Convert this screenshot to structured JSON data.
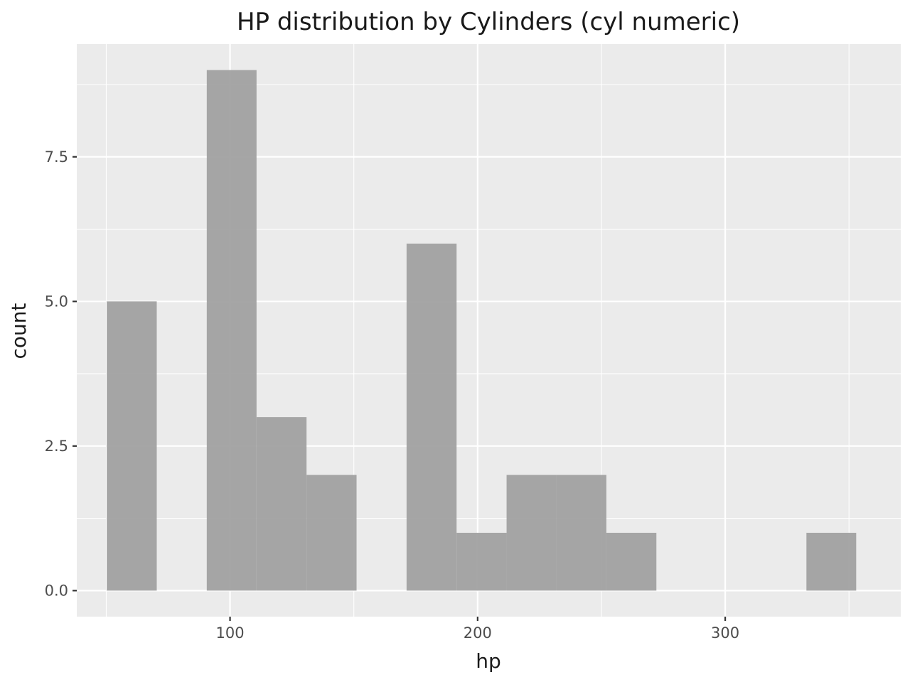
{
  "chart_data": {
    "type": "bar",
    "title": "HP distribution by Cylinders (cyl numeric)",
    "xlabel": "hp",
    "ylabel": "count",
    "xlim": [
      38.1,
      370.9
    ],
    "ylim": [
      -0.45,
      9.45
    ],
    "x_ticks": [
      100,
      200,
      300
    ],
    "x_tick_labels": [
      "100",
      "200",
      "300"
    ],
    "y_ticks": [
      0,
      2.5,
      5,
      7.5
    ],
    "y_tick_labels": [
      "0.0",
      "2.5",
      "5.0",
      "7.5"
    ],
    "bins": [
      {
        "x0": 50.2,
        "x1": 70.4,
        "count": 5
      },
      {
        "x0": 70.4,
        "x1": 90.6,
        "count": 0
      },
      {
        "x0": 90.6,
        "x1": 110.7,
        "count": 9
      },
      {
        "x0": 110.7,
        "x1": 130.9,
        "count": 3
      },
      {
        "x0": 130.9,
        "x1": 151.1,
        "count": 2
      },
      {
        "x0": 151.1,
        "x1": 171.3,
        "count": 0
      },
      {
        "x0": 171.3,
        "x1": 191.5,
        "count": 6
      },
      {
        "x0": 191.5,
        "x1": 211.7,
        "count": 1
      },
      {
        "x0": 211.7,
        "x1": 231.8,
        "count": 2
      },
      {
        "x0": 231.8,
        "x1": 252.0,
        "count": 2
      },
      {
        "x0": 252.0,
        "x1": 272.2,
        "count": 1
      },
      {
        "x0": 272.2,
        "x1": 292.4,
        "count": 0
      },
      {
        "x0": 292.4,
        "x1": 312.6,
        "count": 0
      },
      {
        "x0": 312.6,
        "x1": 332.8,
        "count": 0
      },
      {
        "x0": 332.8,
        "x1": 352.9,
        "count": 1
      }
    ],
    "bar_color": "#a1a1a1",
    "panel_color": "#ebebeb",
    "grid": true
  }
}
